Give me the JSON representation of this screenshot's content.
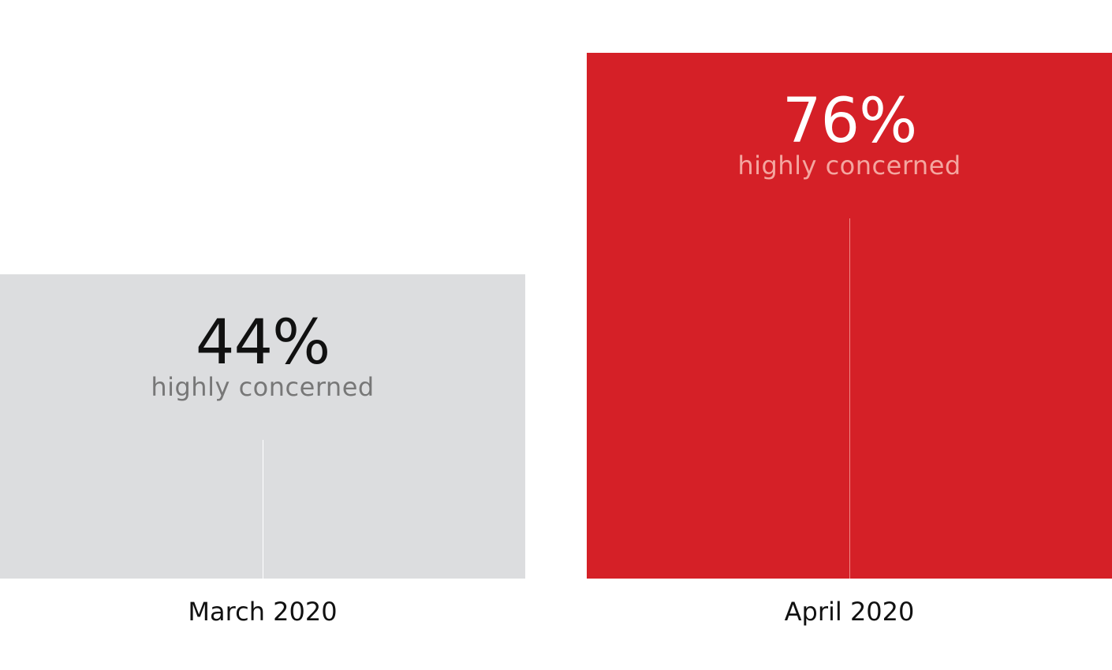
{
  "chart_data": {
    "type": "bar",
    "categories": [
      "March 2020",
      "April 2020"
    ],
    "values": [
      44,
      76
    ],
    "value_labels": [
      "44%",
      "76%"
    ],
    "sublabel": "highly concerned",
    "ylim": [
      0,
      80
    ],
    "grid": false,
    "colors": {
      "bars": [
        "#dcdddf",
        "#d52027"
      ],
      "value_text": [
        "#111111",
        "#ffffff"
      ],
      "sub_text": [
        "#777777",
        "#f4a6a0"
      ],
      "line": [
        "#ffffff",
        "#f08a86"
      ]
    }
  }
}
